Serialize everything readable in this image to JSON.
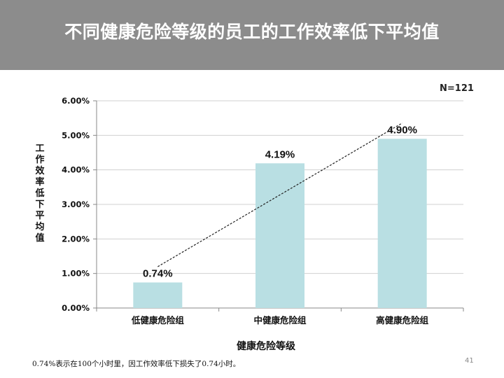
{
  "header": {
    "title": "不同健康危险等级的员工的工作效率低下平均值"
  },
  "sample_size": "N=121",
  "footnote": "0.74%表示在100个小时里，因工作效率低下损失了0.74小时。",
  "page_number": "41",
  "colors": {
    "bar": "#b9dfe3",
    "grid": "#d0d0d0",
    "header": "#8c8c8c",
    "trend": "#222222"
  },
  "chart_data": {
    "type": "bar",
    "title": "",
    "xlabel": "健康危险等级",
    "ylabel": "工作效率低下平均值",
    "categories": [
      "低健康危险组",
      "中健康危险组",
      "高健康危险组"
    ],
    "values": [
      0.74,
      4.19,
      4.9
    ],
    "data_labels": [
      "0.74%",
      "4.19%",
      "4.90%"
    ],
    "ylim": [
      0,
      6
    ],
    "yticks": [
      "0.00%",
      "1.00%",
      "2.00%",
      "3.00%",
      "4.00%",
      "5.00%",
      "6.00%"
    ],
    "grid": true,
    "trendline": "dashed linear"
  }
}
